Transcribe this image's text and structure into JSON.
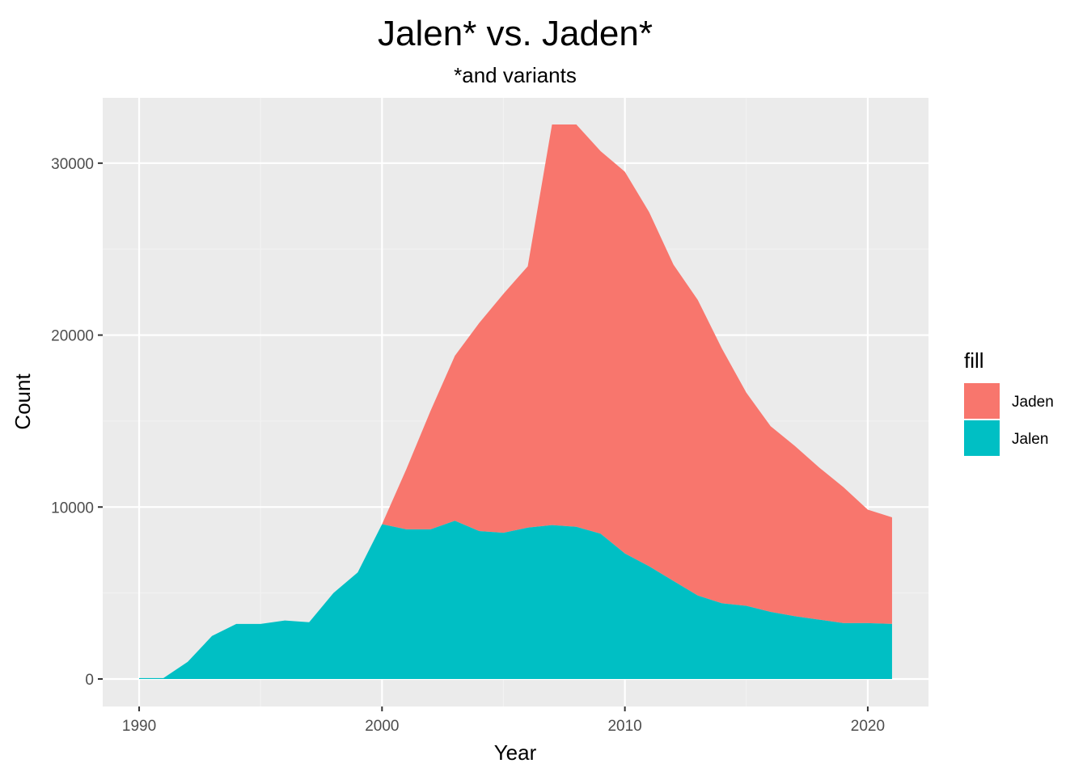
{
  "chart_data": {
    "type": "area",
    "stacked": true,
    "title": "Jalen* vs. Jaden*",
    "subtitle": "*and variants",
    "xlabel": "Year",
    "ylabel": "Count",
    "xlim": [
      1988.5,
      2022.5
    ],
    "ylim": [
      -1600,
      33800
    ],
    "x_ticks": [
      1990,
      2000,
      2010,
      2020
    ],
    "y_ticks": [
      0,
      10000,
      20000,
      30000
    ],
    "grid": true,
    "legend": {
      "title": "fill",
      "position": "right"
    },
    "x": [
      1990,
      1991,
      1992,
      1993,
      1994,
      1995,
      1996,
      1997,
      1998,
      1999,
      2000,
      2001,
      2002,
      2003,
      2004,
      2005,
      2006,
      2007,
      2008,
      2009,
      2010,
      2011,
      2012,
      2013,
      2014,
      2015,
      2016,
      2017,
      2018,
      2019,
      2020,
      2021
    ],
    "series": [
      {
        "name": "Jalen",
        "color": "#00BFC4",
        "values": [
          50,
          50,
          1000,
          2500,
          3200,
          3200,
          3400,
          3300,
          5000,
          6200,
          9000,
          8700,
          8700,
          9200,
          8600,
          8500,
          8800,
          8950,
          8850,
          8450,
          7300,
          6550,
          5700,
          4850,
          4400,
          4250,
          3900,
          3650,
          3450,
          3250,
          3250,
          3200
        ]
      },
      {
        "name": "Jaden",
        "color": "#F8766D",
        "values": [
          0,
          0,
          0,
          0,
          0,
          0,
          0,
          0,
          0,
          0,
          0,
          3500,
          6900,
          9600,
          12100,
          13900,
          15200,
          23300,
          23400,
          22250,
          22200,
          20600,
          18400,
          17200,
          14800,
          12400,
          10800,
          9900,
          8850,
          7900,
          6600,
          6200
        ]
      }
    ]
  },
  "colors": {
    "panel_background": "#EBEBEB",
    "grid_major": "#FFFFFF",
    "grid_minor": "#F2F2F2",
    "tick_mark": "#333333"
  }
}
